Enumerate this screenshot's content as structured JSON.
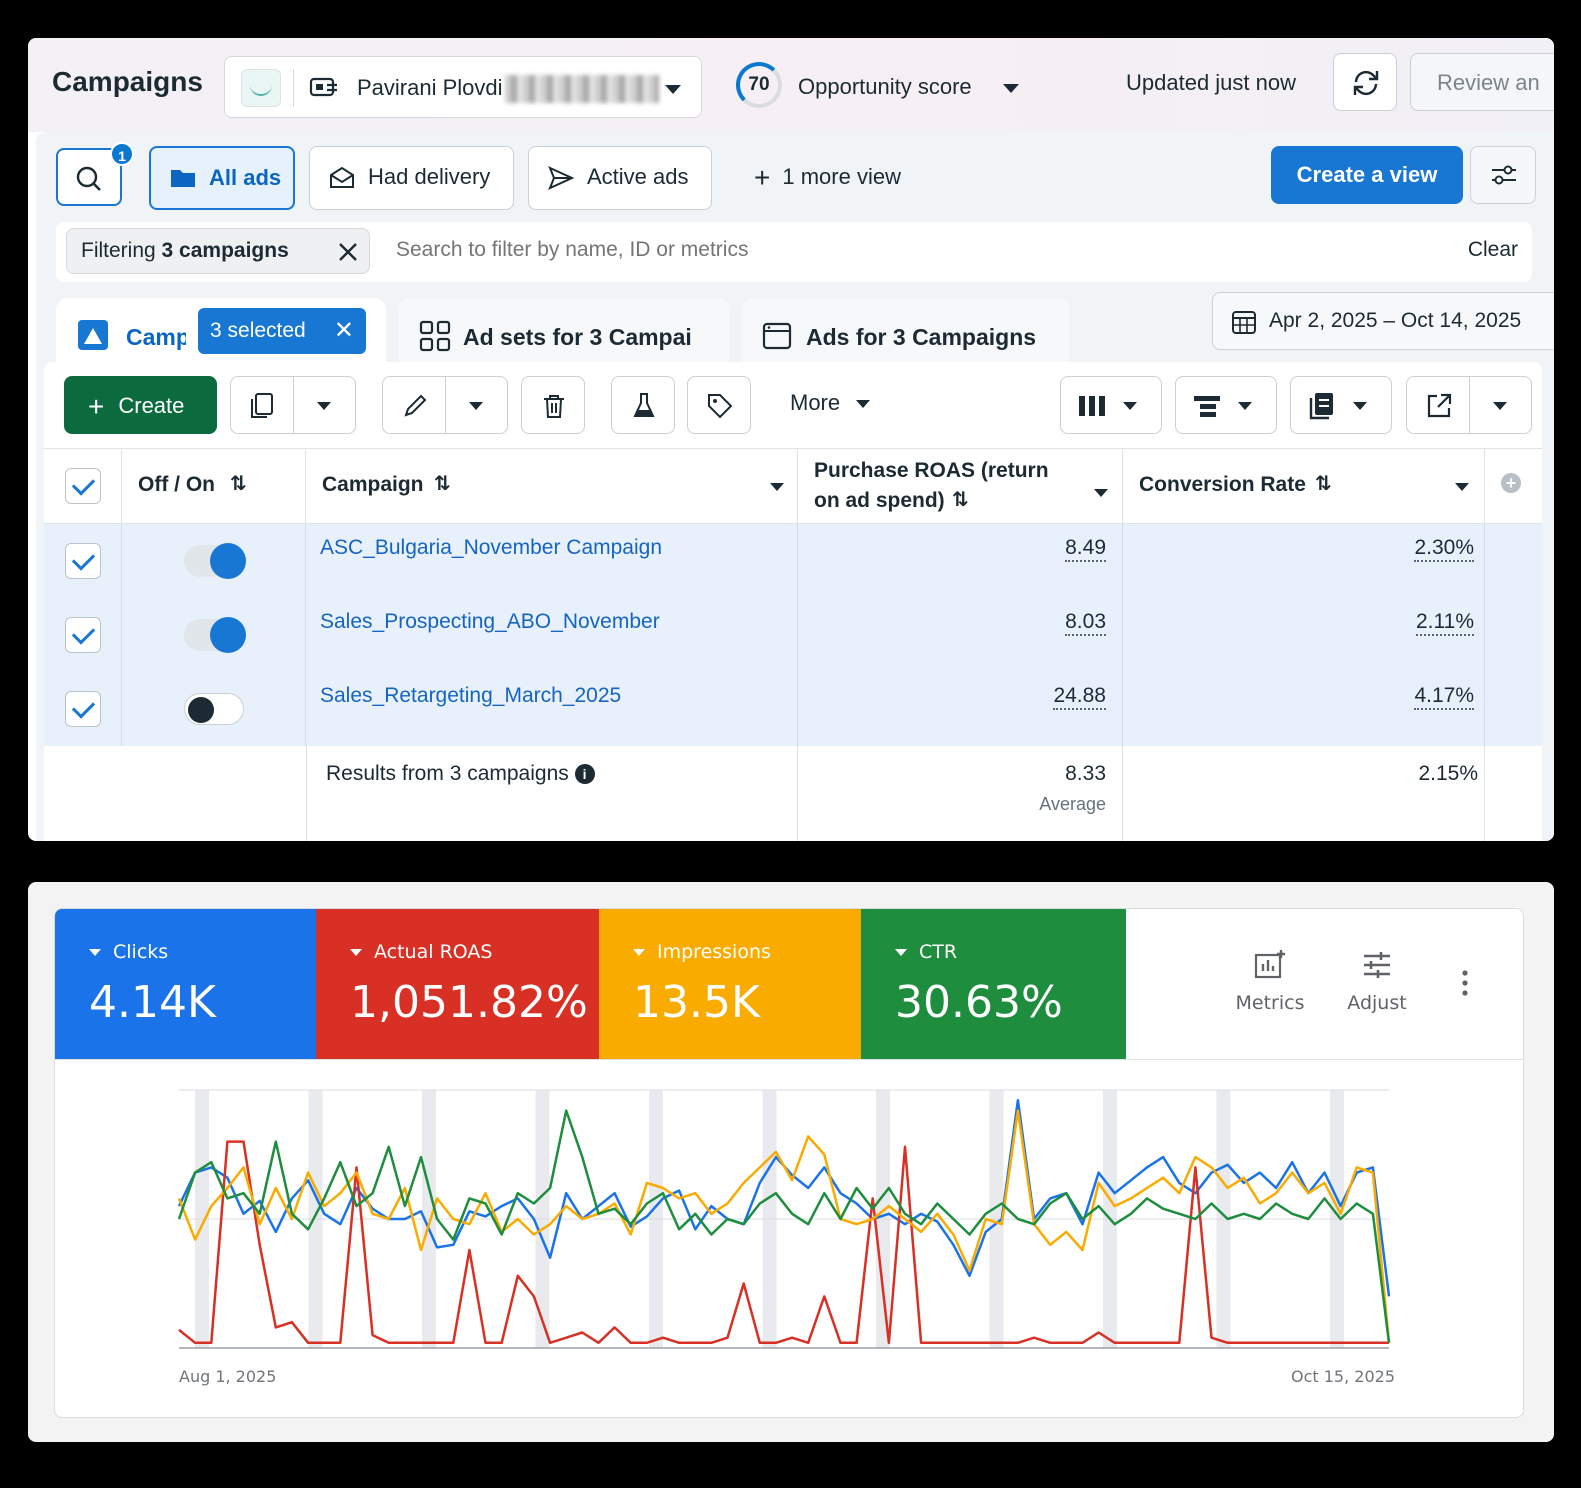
{
  "header": {
    "title": "Campaigns",
    "account_name": "Pavirani Plovdi",
    "opportunity_score": "70",
    "opportunity_label": "Opportunity score",
    "updated": "Updated just now",
    "review_label": "Review an"
  },
  "views": {
    "search_badge": "1",
    "tabs": [
      {
        "label": "All ads",
        "icon": "folder-icon",
        "active": true
      },
      {
        "label": "Had delivery",
        "icon": "envelope-icon",
        "active": false
      },
      {
        "label": "Active ads",
        "icon": "send-icon",
        "active": false
      }
    ],
    "more_view": "1 more view",
    "create_view": "Create a view"
  },
  "filter": {
    "chip_prefix": "Filtering",
    "chip_bold": "3 campaigns",
    "placeholder": "Search to filter by name, ID or metrics",
    "clear": "Clear"
  },
  "levels": {
    "campaigns_tab": "Camp",
    "selected_badge": "3 selected",
    "adsets_tab": "Ad sets for 3 Campai",
    "ads_tab": "Ads for 3 Campaigns",
    "date_range": "Apr 2, 2025 – Oct 14, 2025"
  },
  "toolbar": {
    "create": "Create",
    "more": "More"
  },
  "table": {
    "columns": {
      "toggle": "Off / On",
      "campaign": "Campaign",
      "roas": "Purchase ROAS (return",
      "roas_line2": "on ad spend)",
      "conv": "Conversion Rate"
    },
    "rows": [
      {
        "name": "ASC_Bulgaria_November Campaign",
        "on": true,
        "roas": "8.49",
        "conv": "2.30%"
      },
      {
        "name": "Sales_Prospecting_ABO_November",
        "on": true,
        "roas": "8.03",
        "conv": "2.11%"
      },
      {
        "name": "Sales_Retargeting_March_2025",
        "on": false,
        "roas": "24.88",
        "conv": "4.17%"
      }
    ],
    "summary": {
      "label": "Results from 3 campaigns",
      "roas": "8.33",
      "roas_note": "Average",
      "conv": "2.15%"
    }
  },
  "metrics": {
    "cards": [
      {
        "name": "Clicks",
        "value": "4.14K",
        "color": "#1a73e8"
      },
      {
        "name": "Actual ROAS",
        "value": "1,051.82%",
        "color": "#d93025"
      },
      {
        "name": "Impressions",
        "value": "13.5K",
        "color": "#f9ab00"
      },
      {
        "name": "CTR",
        "value": "30.63%",
        "color": "#1e8e3e"
      }
    ],
    "metrics_label": "Metrics",
    "adjust_label": "Adjust"
  },
  "chart_data": {
    "type": "line",
    "x_start_label": "Aug 1, 2025",
    "x_end_label": "Oct 15, 2025",
    "grid": "horizontal",
    "series": [
      {
        "name": "Clicks",
        "color": "#1a73e8",
        "values": [
          0.55,
          0.68,
          0.7,
          0.66,
          0.52,
          0.57,
          0.45,
          0.58,
          0.65,
          0.52,
          0.48,
          0.62,
          0.54,
          0.5,
          0.5,
          0.53,
          0.39,
          0.4,
          0.53,
          0.51,
          0.55,
          0.58,
          0.5,
          0.35,
          0.6,
          0.5,
          0.55,
          0.6,
          0.47,
          0.51,
          0.58,
          0.61,
          0.46,
          0.55,
          0.5,
          0.48,
          0.64,
          0.74,
          0.67,
          0.62,
          0.7,
          0.6,
          0.56,
          0.5,
          0.52,
          0.48,
          0.52,
          0.49,
          0.4,
          0.28,
          0.45,
          0.5,
          0.96,
          0.5,
          0.58,
          0.6,
          0.48,
          0.68,
          0.6,
          0.65,
          0.7,
          0.74,
          0.64,
          0.6,
          0.68,
          0.71,
          0.64,
          0.68,
          0.62,
          0.72,
          0.6,
          0.68,
          0.55,
          0.68,
          0.7,
          0.2
        ]
      },
      {
        "name": "Actual ROAS",
        "color": "#d93025",
        "values": [
          0.07,
          0.02,
          0.02,
          0.8,
          0.8,
          0.4,
          0.08,
          0.1,
          0.02,
          0.02,
          0.02,
          0.7,
          0.05,
          0.02,
          0.02,
          0.02,
          0.02,
          0.02,
          0.38,
          0.02,
          0.02,
          0.28,
          0.2,
          0.02,
          0.04,
          0.06,
          0.02,
          0.08,
          0.02,
          0.02,
          0.04,
          0.02,
          0.02,
          0.02,
          0.04,
          0.25,
          0.02,
          0.02,
          0.04,
          0.02,
          0.2,
          0.02,
          0.02,
          0.58,
          0.02,
          0.78,
          0.02,
          0.02,
          0.02,
          0.02,
          0.02,
          0.02,
          0.02,
          0.04,
          0.02,
          0.02,
          0.02,
          0.06,
          0.02,
          0.02,
          0.02,
          0.02,
          0.02,
          0.7,
          0.04,
          0.02,
          0.02,
          0.02,
          0.02,
          0.02,
          0.02,
          0.02,
          0.02,
          0.02,
          0.02,
          0.02
        ]
      },
      {
        "name": "Impressions",
        "color": "#f9ab00",
        "values": [
          0.58,
          0.42,
          0.55,
          0.62,
          0.7,
          0.48,
          0.62,
          0.5,
          0.68,
          0.55,
          0.6,
          0.68,
          0.52,
          0.5,
          0.62,
          0.38,
          0.58,
          0.5,
          0.48,
          0.6,
          0.45,
          0.5,
          0.44,
          0.48,
          0.55,
          0.5,
          0.52,
          0.56,
          0.44,
          0.64,
          0.62,
          0.58,
          0.6,
          0.52,
          0.56,
          0.64,
          0.7,
          0.76,
          0.65,
          0.82,
          0.75,
          0.5,
          0.48,
          0.5,
          0.55,
          0.5,
          0.45,
          0.52,
          0.44,
          0.3,
          0.5,
          0.48,
          0.92,
          0.48,
          0.4,
          0.45,
          0.38,
          0.64,
          0.55,
          0.58,
          0.62,
          0.66,
          0.6,
          0.74,
          0.7,
          0.62,
          0.66,
          0.56,
          0.6,
          0.68,
          0.6,
          0.64,
          0.52,
          0.7,
          0.68,
          0.02
        ]
      },
      {
        "name": "CTR",
        "color": "#1e8e3e",
        "values": [
          0.5,
          0.68,
          0.72,
          0.58,
          0.6,
          0.52,
          0.8,
          0.52,
          0.46,
          0.58,
          0.72,
          0.55,
          0.6,
          0.78,
          0.55,
          0.74,
          0.5,
          0.42,
          0.58,
          0.56,
          0.44,
          0.6,
          0.56,
          0.62,
          0.92,
          0.74,
          0.52,
          0.54,
          0.48,
          0.56,
          0.6,
          0.46,
          0.52,
          0.44,
          0.5,
          0.48,
          0.56,
          0.6,
          0.52,
          0.48,
          0.6,
          0.5,
          0.62,
          0.54,
          0.62,
          0.52,
          0.48,
          0.56,
          0.5,
          0.44,
          0.52,
          0.56,
          0.5,
          0.48,
          0.56,
          0.6,
          0.5,
          0.55,
          0.48,
          0.52,
          0.58,
          0.54,
          0.52,
          0.5,
          0.56,
          0.5,
          0.52,
          0.5,
          0.56,
          0.52,
          0.5,
          0.58,
          0.5,
          0.56,
          0.52,
          0.02
        ]
      }
    ]
  }
}
